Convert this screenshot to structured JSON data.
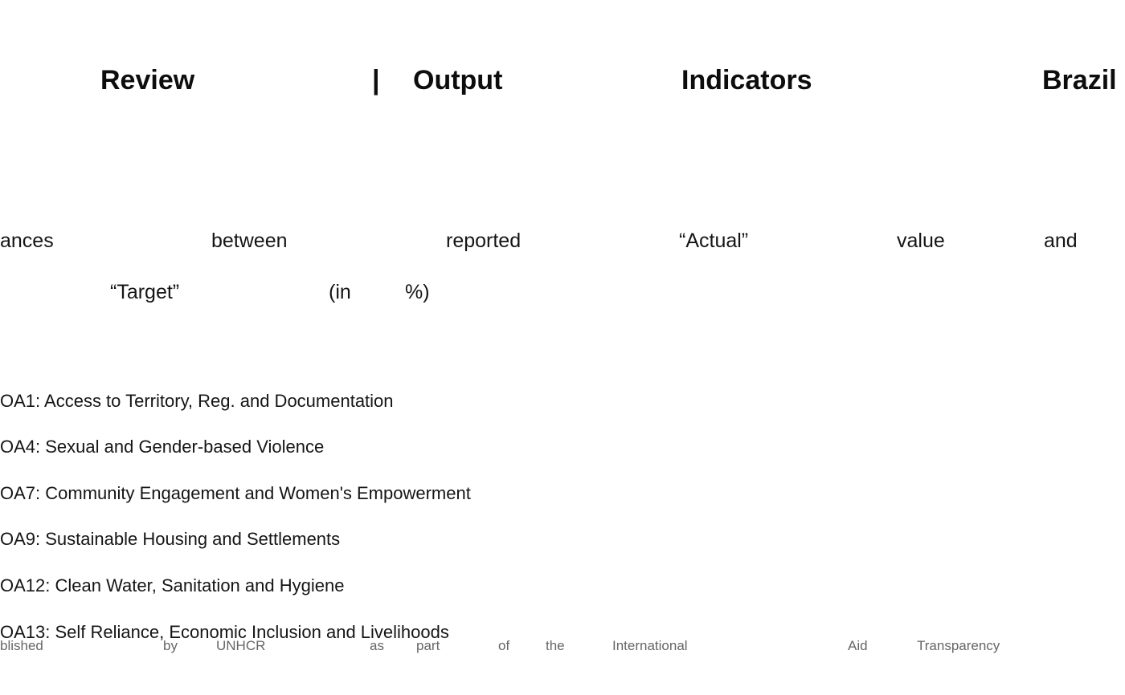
{
  "title": {
    "words": [
      "Review",
      "|",
      "Output",
      "Indicators",
      "Brazil"
    ]
  },
  "subtitle": {
    "line1": [
      "ances",
      "between",
      "reported",
      "“Actual”",
      "value",
      "and"
    ],
    "line2": [
      "“Target”",
      "(in",
      "%)"
    ]
  },
  "objectives": [
    "OA1: Access to Territory, Reg. and Documentation",
    "OA4: Sexual and Gender-based Violence",
    "OA7: Community Engagement and Women's Empowerment",
    "OA9: Sustainable Housing and Settlements",
    "OA12: Clean Water, Sanitation and Hygiene",
    "OA13: Self Reliance, Economic Inclusion and Livelihoods"
  ],
  "footer": {
    "words": [
      "blished",
      "by",
      "UNHCR",
      "as",
      "part",
      "of",
      "the",
      "International",
      "Aid",
      "Transparency"
    ]
  }
}
